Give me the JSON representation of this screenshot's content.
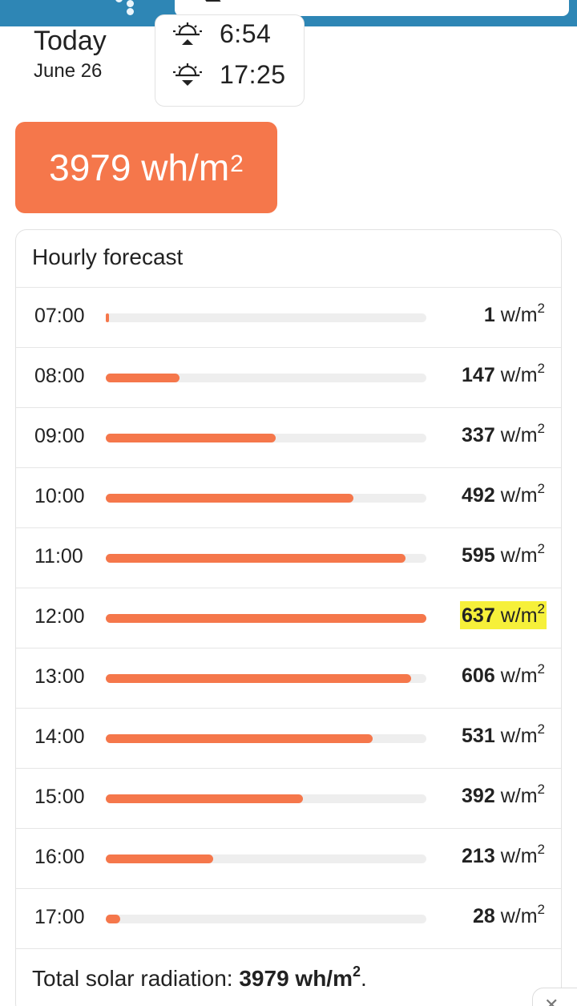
{
  "header": {
    "menu_icon": "dots-icon",
    "search_icon": "search-icon"
  },
  "today": {
    "title": "Today",
    "date": "June 26",
    "sunrise": "6:54",
    "sunset": "17:25"
  },
  "total_badge": {
    "value": "3979 wh/m",
    "superscript": "2"
  },
  "hourly": {
    "title": "Hourly forecast",
    "unit": "w/m",
    "unit_superscript": "2",
    "max_value": 637,
    "rows": [
      {
        "time": "07:00",
        "value": "1",
        "level": 1,
        "highlighted": false
      },
      {
        "time": "08:00",
        "value": "147",
        "level": 147,
        "highlighted": false
      },
      {
        "time": "09:00",
        "value": "337",
        "level": 337,
        "highlighted": false
      },
      {
        "time": "10:00",
        "value": "492",
        "level": 492,
        "highlighted": false
      },
      {
        "time": "11:00",
        "value": "595",
        "level": 595,
        "highlighted": false
      },
      {
        "time": "12:00",
        "value": "637",
        "level": 637,
        "highlighted": true
      },
      {
        "time": "13:00",
        "value": "606",
        "level": 606,
        "highlighted": false
      },
      {
        "time": "14:00",
        "value": "531",
        "level": 531,
        "highlighted": false
      },
      {
        "time": "15:00",
        "value": "392",
        "level": 392,
        "highlighted": false
      },
      {
        "time": "16:00",
        "value": "213",
        "level": 213,
        "highlighted": false
      },
      {
        "time": "17:00",
        "value": "28",
        "level": 28,
        "highlighted": false
      }
    ],
    "total_label": "Total solar radiation: ",
    "total_value": "3979 wh/m",
    "total_superscript": "2",
    "total_suffix": "."
  },
  "colors": {
    "accent": "#f5774b",
    "topbar": "#2e86b5",
    "highlight": "#f6f03a",
    "track": "#eeeeee"
  }
}
